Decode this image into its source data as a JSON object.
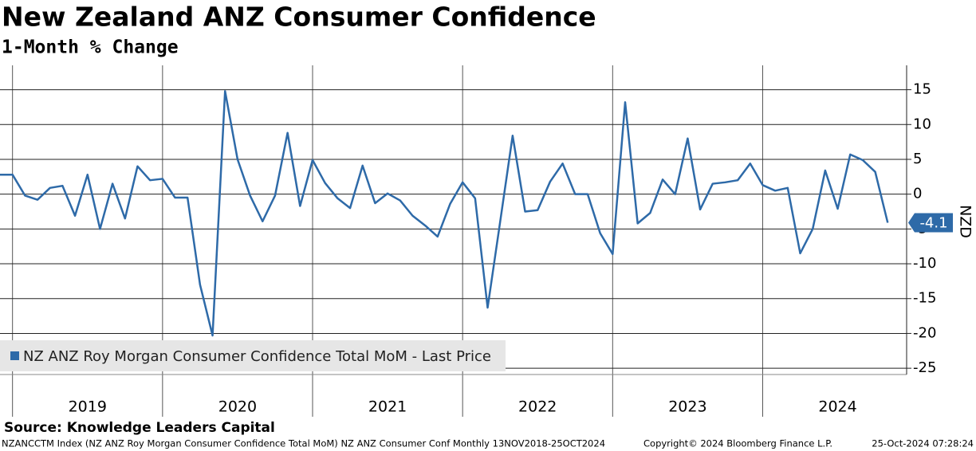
{
  "chart_data": {
    "type": "line",
    "title": "New Zealand ANZ Consumer Confidence",
    "subtitle": "1-Month % Change",
    "y_axis_label": "NZD",
    "categories": [
      null,
      null,
      null,
      null,
      null,
      null,
      null,
      "2019",
      null,
      null,
      null,
      null,
      null,
      null,
      null,
      null,
      null,
      null,
      null,
      "2020",
      null,
      null,
      null,
      null,
      null,
      null,
      null,
      null,
      null,
      null,
      null,
      "2021",
      null,
      null,
      null,
      null,
      null,
      null,
      null,
      null,
      null,
      null,
      null,
      "2022",
      null,
      null,
      null,
      null,
      null,
      null,
      null,
      null,
      null,
      null,
      null,
      "2023",
      null,
      null,
      null,
      null,
      null,
      null,
      null,
      null,
      null,
      null,
      null,
      "2024",
      null,
      null,
      null,
      null
    ],
    "series": [
      {
        "name": "NZ ANZ Roy Morgan Consumer Confidence Total MoM - Last Price",
        "color": "#2e6aa8",
        "values": [
          2.8,
          2.8,
          -0.2,
          -0.8,
          0.9,
          1.2,
          -3.1,
          2.8,
          -5,
          1.5,
          -3.5,
          4,
          2,
          2.2,
          -0.5,
          -0.5,
          -13,
          -20.3,
          14.8,
          5,
          -0.2,
          -3.9,
          -0.2,
          8.8,
          -1.7,
          4.9,
          1.6,
          -0.6,
          -2,
          4.1,
          -1.3,
          0.1,
          -0.9,
          -3.1,
          -4.5,
          -6.1,
          -1.4,
          1.7,
          -0.6,
          -16.3,
          -4,
          8.4,
          -2.5,
          -2.3,
          1.8,
          4.4,
          0,
          0,
          -5.6,
          -8.6,
          13.2,
          -4.2,
          -2.7,
          2.1,
          0,
          8,
          -2.2,
          1.5,
          1.7,
          2,
          4.4,
          1.3,
          0.5,
          0.9,
          -8.5,
          -5,
          3.4,
          -2.1,
          5.7,
          4.9,
          3.2,
          -4.1
        ]
      }
    ],
    "ylim": [
      -25.9,
      18.5
    ],
    "yticks": [
      15,
      10,
      5,
      0,
      -5,
      -10,
      -15,
      -20,
      -25
    ],
    "grid": true,
    "legend": "bottom-left",
    "source": "Source: Knowledge Leaders Capital",
    "footer": {
      "left": "NZANCCTM Index (NZ ANZ Roy Morgan Consumer Confidence Total MoM) NZ ANZ Consumer Conf  Monthly 13NOV2018-25OCT2024",
      "middle": "Copyright© 2024 Bloomberg Finance L.P.",
      "right": "25-Oct-2024 07:28:24"
    }
  }
}
